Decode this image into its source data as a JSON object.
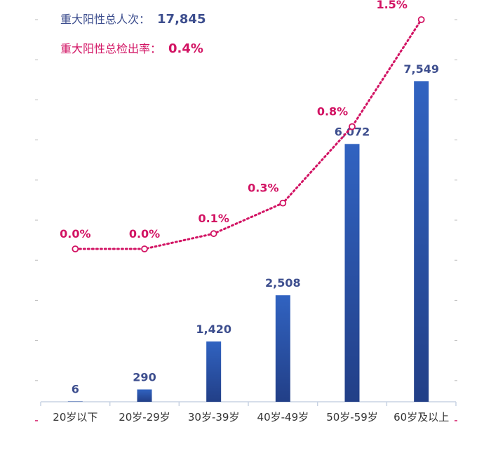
{
  "summary": {
    "total_label": "重大阳性总人次：",
    "total_value": "17,845",
    "rate_label": "重大阳性总检出率：",
    "rate_value": "0.4%"
  },
  "colors": {
    "bar_top": "#3163c1",
    "bar_bottom": "#223f87",
    "bar_label": "#3d4e8e",
    "line": "#d21363",
    "axis": "#c9d3e3",
    "tick_text": "#333333"
  },
  "chart_data": {
    "type": "bar+line",
    "categories": [
      "20岁以下",
      "20岁-29岁",
      "30岁-39岁",
      "40岁-49岁",
      "50岁-59岁",
      "60岁及以上"
    ],
    "series": [
      {
        "name": "重大阳性人次",
        "type": "bar",
        "values": [
          6,
          290,
          1420,
          2508,
          6072,
          7549
        ],
        "labels": [
          "6",
          "290",
          "1,420",
          "2,508",
          "6,072",
          "7,549"
        ]
      },
      {
        "name": "重大阳性检出率",
        "type": "line",
        "values": [
          0.0,
          0.0,
          0.1,
          0.3,
          0.8,
          1.5
        ],
        "labels": [
          "0.0%",
          "0.0%",
          "0.1%",
          "0.3%",
          "0.8%",
          "1.5%"
        ]
      }
    ],
    "ylim_left": [
      0,
      9000
    ],
    "ylim_right": [
      -1.0,
      1.5
    ],
    "grid": false,
    "legend": "none"
  }
}
